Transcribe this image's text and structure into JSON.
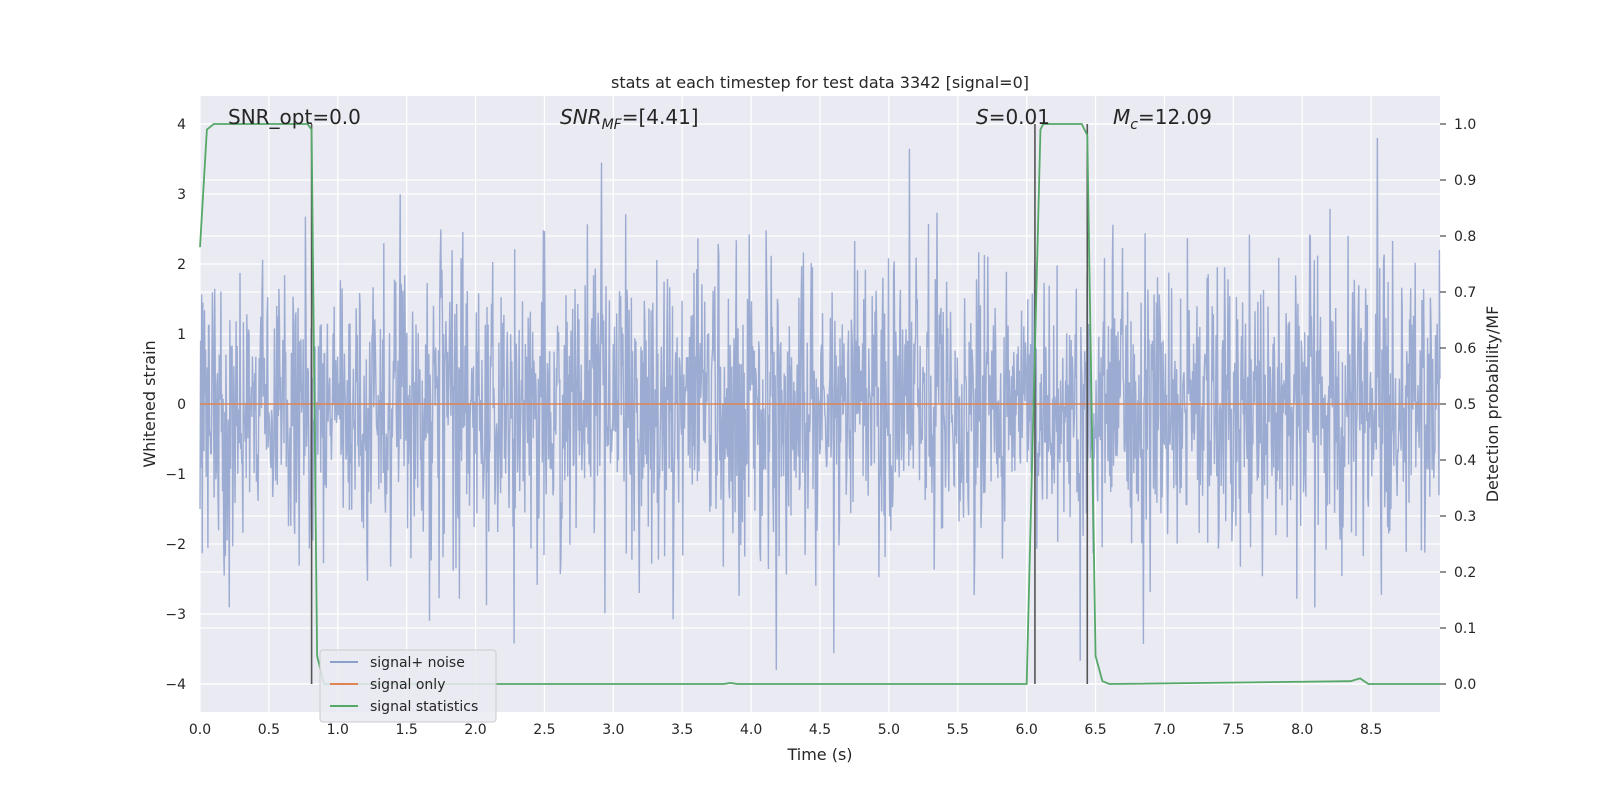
{
  "chart_data": {
    "type": "line",
    "title": "stats at each timestep for test data 3342 [signal=0]",
    "xlabel": "Time (s)",
    "ylabel": "Whitened strain",
    "ylabel_right": "Detection probability/MF",
    "xlim": [
      0.0,
      9.0
    ],
    "ylim": [
      -4.4,
      4.4
    ],
    "ylim_right": [
      -0.05,
      1.05
    ],
    "x_ticks": [
      "0.0",
      "0.5",
      "1.0",
      "1.5",
      "2.0",
      "2.5",
      "3.0",
      "3.5",
      "4.0",
      "4.5",
      "5.0",
      "5.5",
      "6.0",
      "6.5",
      "7.0",
      "7.5",
      "8.0",
      "8.5"
    ],
    "y_ticks": [
      "4",
      "3",
      "2",
      "1",
      "0",
      "−1",
      "−2",
      "−3",
      "−4"
    ],
    "y_ticks_right": [
      "1.0",
      "0.9",
      "0.8",
      "0.7",
      "0.6",
      "0.5",
      "0.4",
      "0.3",
      "0.2",
      "0.1",
      "0.0"
    ],
    "grid": true,
    "legend_position": "lower-left",
    "annotations": {
      "snr_opt": "SNR_opt=0.0",
      "snr_mf": "SNR_MF=[4.41]",
      "s_stat": "S=0.01",
      "mc": "M_c=12.09"
    },
    "vertical_lines_x": [
      0.81,
      6.06,
      6.44
    ],
    "series": [
      {
        "name": "signal+ noise",
        "color": "#8da0cb",
        "axis": "left",
        "description": "whitened noise time series, roughly within ±2.5 with spikes to about ±3.8",
        "amplitude_envelope": [
          -3.8,
          3.8
        ]
      },
      {
        "name": "signal only",
        "color": "#dd8452",
        "axis": "left",
        "x": [
          0.0,
          9.0
        ],
        "y": [
          0.0,
          0.0
        ]
      },
      {
        "name": "signal statistics",
        "color": "#55a868",
        "axis": "right",
        "x": [
          0.0,
          0.05,
          0.1,
          0.2,
          0.78,
          0.81,
          0.85,
          0.9,
          3.8,
          3.85,
          3.9,
          6.0,
          6.05,
          6.1,
          6.12,
          6.4,
          6.44,
          6.5,
          6.55,
          6.6,
          8.35,
          8.42,
          8.48,
          9.0
        ],
        "y": [
          0.78,
          0.99,
          1.0,
          1.0,
          1.0,
          0.99,
          0.05,
          0.0,
          0.0,
          0.002,
          0.0,
          0.0,
          0.5,
          0.99,
          1.0,
          1.0,
          0.98,
          0.05,
          0.005,
          0.0,
          0.005,
          0.01,
          0.0,
          0.0
        ]
      }
    ]
  },
  "legend": {
    "items": [
      {
        "label": "signal+ noise",
        "color": "#8da0cb"
      },
      {
        "label": "signal only",
        "color": "#dd8452"
      },
      {
        "label": "signal statistics",
        "color": "#55a868"
      }
    ]
  },
  "colors": {
    "plot_background": "#eaeaf2",
    "grid": "#ffffff",
    "vertical_line": "#555555"
  }
}
